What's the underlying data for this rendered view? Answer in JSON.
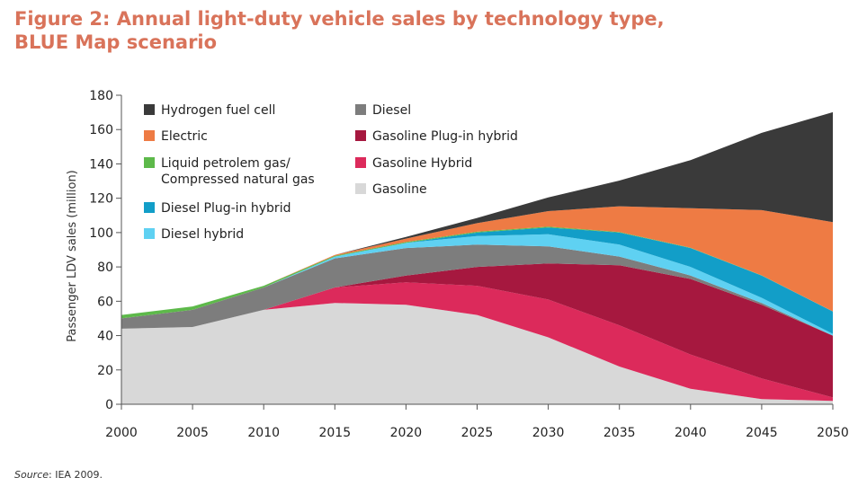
{
  "title_line1": "Figure 2: Annual light-duty vehicle sales by technology type,",
  "title_line2": "BLUE Map scenario",
  "source_label": "Source",
  "source_text": ": IEA 2009.",
  "colors": {
    "title": "#d9735a",
    "Gasoline": "#d8d8d8",
    "Gasoline Hybrid": "#dc2a5b",
    "Gasoline Plug-in hybrid": "#a6183f",
    "Diesel": "#7d7d7d",
    "Diesel hybrid": "#5fd1f2",
    "Diesel Plug-in hybrid": "#129ec8",
    "Liquid petrolem gas/Compressed natural gas": "#5db94a",
    "Electric": "#ee7b44",
    "Hydrogen fuel cell": "#3a3a3a"
  },
  "chart_data": {
    "type": "area",
    "stacked": true,
    "x": [
      2000,
      2005,
      2010,
      2015,
      2020,
      2025,
      2030,
      2035,
      2040,
      2045,
      2050
    ],
    "ylabel": "Passenger LDV sales (million)",
    "xlabel": "",
    "ylim": [
      0,
      180
    ],
    "yticks": [
      0,
      20,
      40,
      60,
      80,
      100,
      120,
      140,
      160,
      180
    ],
    "legend_position": "top-left",
    "grid": false,
    "series": [
      {
        "name": "Gasoline",
        "values": [
          44,
          45,
          55,
          59,
          58,
          52,
          39,
          22,
          9,
          3,
          2
        ]
      },
      {
        "name": "Gasoline Hybrid",
        "values": [
          0,
          0,
          0,
          9,
          13,
          17,
          22,
          24,
          20,
          12,
          2
        ]
      },
      {
        "name": "Gasoline Plug-in hybrid",
        "values": [
          0,
          0,
          0,
          0,
          4,
          11,
          21,
          35,
          44,
          43,
          36
        ]
      },
      {
        "name": "Diesel",
        "values": [
          6,
          10,
          13,
          17,
          16,
          13,
          10,
          5,
          2,
          1,
          0
        ]
      },
      {
        "name": "Diesel hybrid",
        "values": [
          0,
          0,
          0,
          1,
          3,
          5,
          7,
          7,
          5,
          3,
          1
        ]
      },
      {
        "name": "Diesel Plug-in hybrid",
        "values": [
          0,
          0,
          0,
          0,
          0,
          2,
          4,
          7,
          11,
          13,
          13
        ]
      },
      {
        "name": "Liquid petrolem gas/Compressed natural gas",
        "values": [
          2,
          2,
          1,
          0.5,
          0.5,
          0.5,
          0.5,
          0.3,
          0.2,
          0.1,
          0.1
        ]
      },
      {
        "name": "Electric",
        "values": [
          0,
          0,
          0,
          0.5,
          2,
          5,
          9,
          15,
          23,
          38,
          52
        ]
      },
      {
        "name": "Hydrogen fuel cell",
        "values": [
          0,
          0,
          0,
          0,
          1,
          3,
          8,
          15,
          28,
          45,
          64
        ]
      }
    ],
    "legend": [
      {
        "label": "Hydrogen fuel cell",
        "line2": ""
      },
      {
        "label": "Electric",
        "line2": ""
      },
      {
        "label": "Liquid petrolem gas/",
        "line2": "Compressed natural gas",
        "series": "Liquid petrolem gas/Compressed natural gas"
      },
      {
        "label": "Diesel Plug-in hybrid",
        "line2": ""
      },
      {
        "label": "Diesel hybrid",
        "line2": ""
      },
      {
        "label": "Diesel",
        "line2": ""
      },
      {
        "label": "Gasoline Plug-in hybrid",
        "line2": ""
      },
      {
        "label": "Gasoline Hybrid",
        "line2": ""
      },
      {
        "label": "Gasoline",
        "line2": ""
      }
    ]
  }
}
